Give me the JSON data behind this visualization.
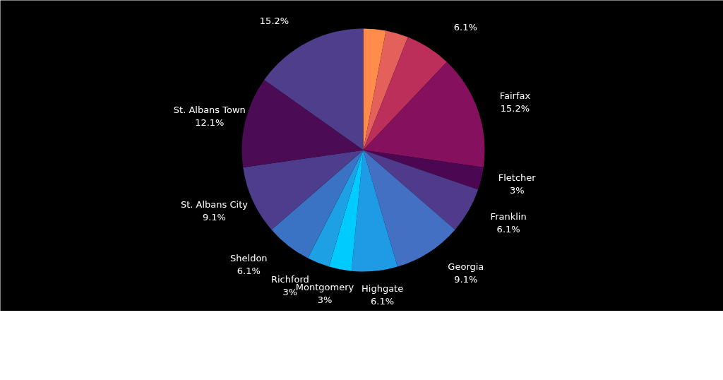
{
  "chart_data": {
    "type": "pie",
    "categories": [
      null,
      null,
      null,
      "Fairfax",
      "Fletcher",
      "Franklin",
      "Georgia",
      "Highgate",
      "Montgomery",
      "Richford",
      "Sheldon",
      "St. Albans City",
      "St. Albans Town",
      null
    ],
    "values": [
      3,
      3,
      6.1,
      15.2,
      3,
      6.1,
      9.1,
      6.1,
      3,
      3,
      6.1,
      9.1,
      12.1,
      15.2
    ],
    "colors": [
      "#ff8c4a",
      "#e4605a",
      "#bb2f5a",
      "#85105e",
      "#4b0752",
      "#4f3a8c",
      "#4470c4",
      "#1e9be4",
      "#00cbff",
      "#1ea0e4",
      "#3a73c4",
      "#4d3d8c",
      "#4b0c55",
      "#4f3e8c"
    ],
    "value_labels": [
      null,
      null,
      "6.1%",
      "15.2%",
      "3%",
      "6.1%",
      "9.1%",
      "6.1%",
      "3%",
      "3%",
      "6.1%",
      "9.1%",
      "12.1%",
      "15.2%"
    ]
  }
}
